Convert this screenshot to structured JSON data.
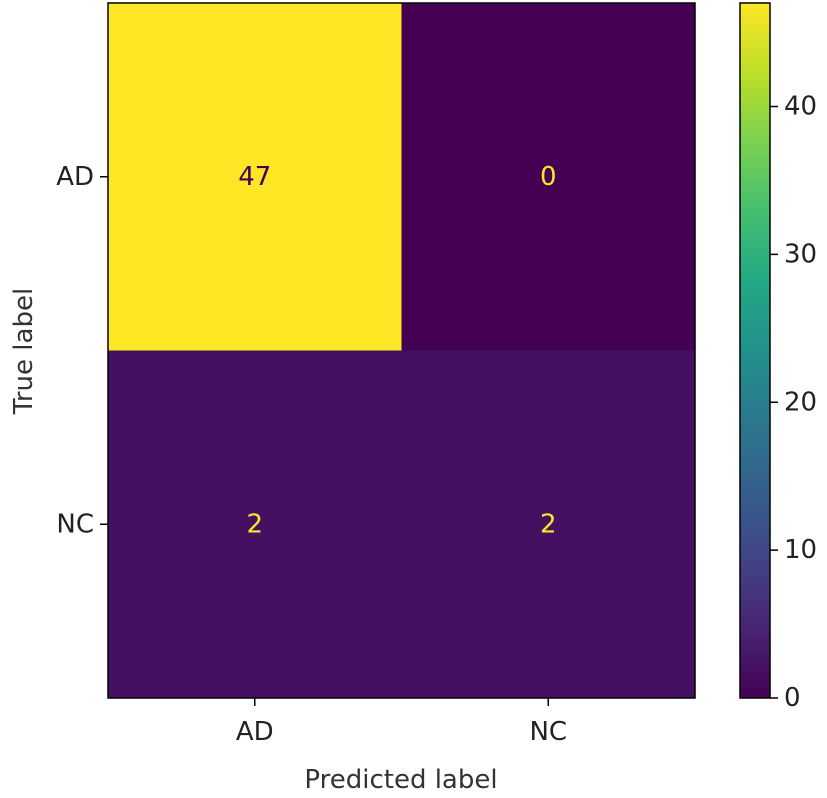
{
  "chart_data": {
    "type": "heatmap",
    "xlabel": "Predicted label",
    "ylabel": "True label",
    "x_categories": [
      "AD",
      "NC"
    ],
    "y_categories": [
      "AD",
      "NC"
    ],
    "values": [
      [
        47,
        0
      ],
      [
        2,
        2
      ]
    ],
    "colormap": "viridis",
    "colorbar": {
      "range": [
        0,
        47
      ],
      "ticks": [
        0,
        10,
        20,
        30,
        40
      ]
    },
    "text_colors": {
      "on_dark": "#fde725",
      "on_light": "#440154"
    }
  }
}
